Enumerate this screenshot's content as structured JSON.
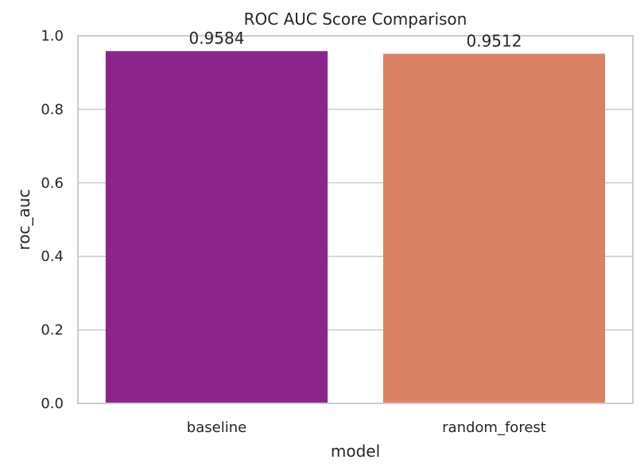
{
  "chart_data": {
    "type": "bar",
    "title": "ROC AUC Score Comparison",
    "xlabel": "model",
    "ylabel": "roc_auc",
    "categories": [
      "baseline",
      "random_forest"
    ],
    "values": [
      0.9584,
      0.9512
    ],
    "value_labels": [
      "0.9584",
      "0.9512"
    ],
    "colors": [
      "#8b258c",
      "#d98266"
    ],
    "ylim": [
      0,
      1.0
    ],
    "yticks": [
      0.0,
      0.2,
      0.4,
      0.6,
      0.8,
      1.0
    ],
    "ytick_labels": [
      "0.0",
      "0.2",
      "0.4",
      "0.6",
      "0.8",
      "1.0"
    ],
    "grid": true,
    "legend": false
  }
}
